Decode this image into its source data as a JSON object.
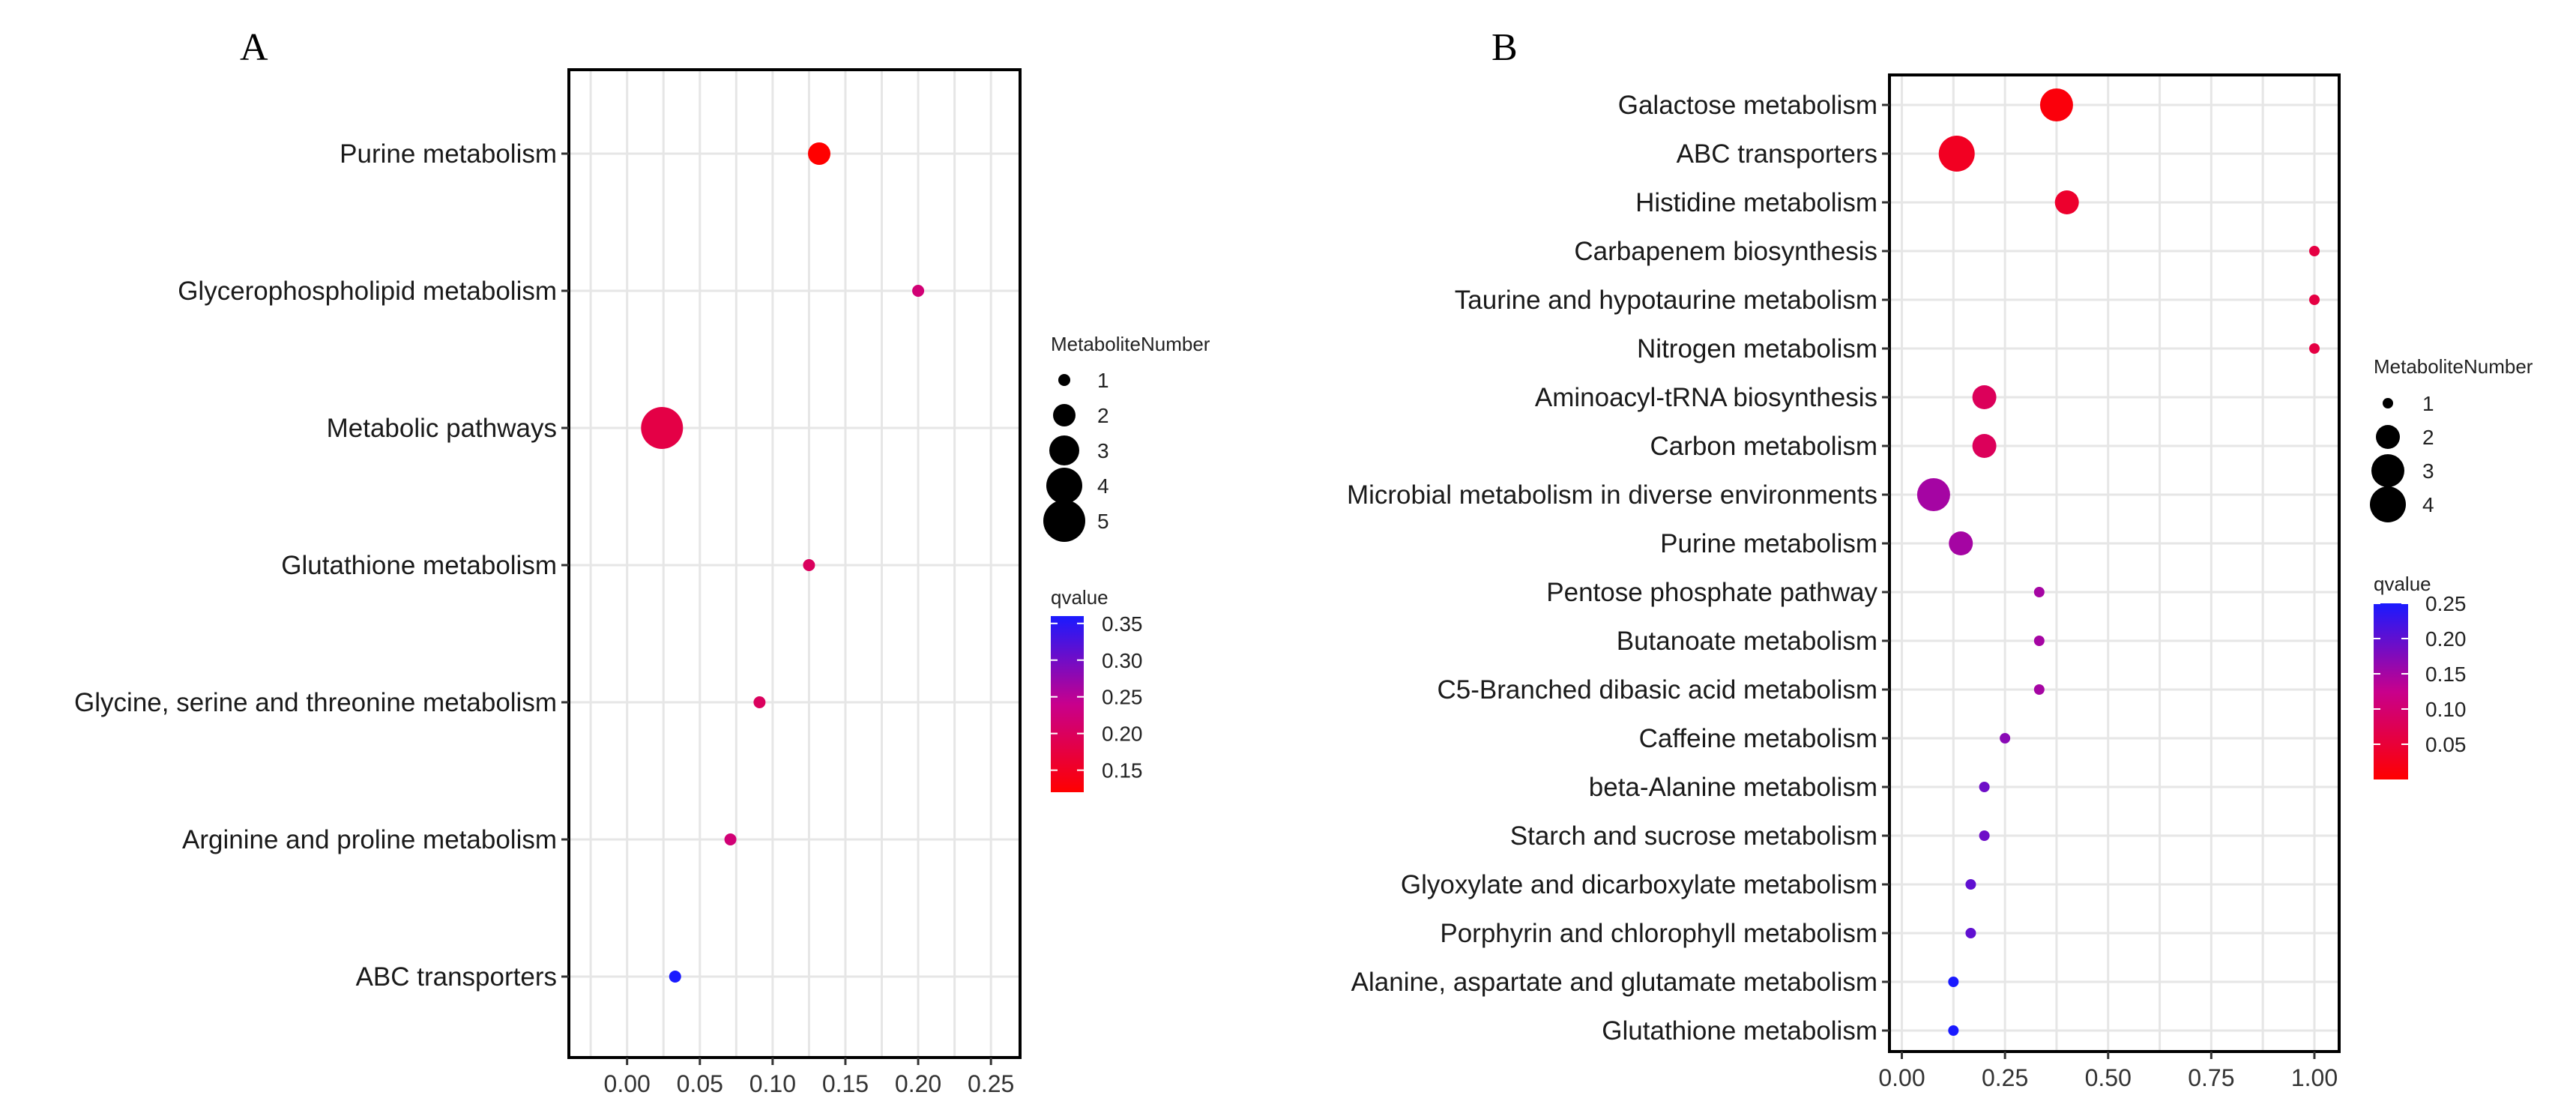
{
  "chart_data": [
    {
      "panel": "A",
      "type": "scatter",
      "xlim": [
        -0.04,
        0.27
      ],
      "x_ticks": [
        0.0,
        0.05,
        0.1,
        0.15,
        0.2,
        0.25
      ],
      "x_tick_labels": [
        "0.00",
        "0.05",
        "0.10",
        "0.15",
        "0.20",
        "0.25"
      ],
      "grid": true,
      "points": [
        {
          "pathway": "Purine metabolism",
          "x": 0.132,
          "count": 2,
          "qvalue": 0.12
        },
        {
          "pathway": "Glycerophospholipid metabolism",
          "x": 0.2,
          "count": 1,
          "qvalue": 0.22
        },
        {
          "pathway": "Metabolic pathways",
          "x": 0.024,
          "count": 5,
          "qvalue": 0.18
        },
        {
          "pathway": "Glutathione metabolism",
          "x": 0.125,
          "count": 1,
          "qvalue": 0.2
        },
        {
          "pathway": "Glycine, serine and threonine metabolism",
          "x": 0.091,
          "count": 1,
          "qvalue": 0.2
        },
        {
          "pathway": "Arginine and proline metabolism",
          "x": 0.071,
          "count": 1,
          "qvalue": 0.22
        },
        {
          "pathway": "ABC transporters",
          "x": 0.033,
          "count": 1,
          "qvalue": 0.36
        }
      ],
      "size_legend": {
        "title": "MetaboliteNumber",
        "values": [
          1,
          2,
          3,
          4,
          5
        ]
      },
      "color_legend": {
        "title": "qvalue",
        "range": [
          0.12,
          0.36
        ],
        "ticks": [
          0.15,
          0.2,
          0.25,
          0.3,
          0.35
        ],
        "tick_labels": [
          "0.15",
          "0.20",
          "0.25",
          "0.30",
          "0.35"
        ],
        "low_color": "#ff0000",
        "high_color": "#0000ff"
      }
    },
    {
      "panel": "B",
      "type": "scatter",
      "xlim": [
        -0.03,
        1.06
      ],
      "x_ticks": [
        0.0,
        0.25,
        0.5,
        0.75,
        1.0
      ],
      "x_tick_labels": [
        "0.00",
        "0.25",
        "0.50",
        "0.75",
        "1.00"
      ],
      "grid": true,
      "points": [
        {
          "pathway": "Galactose metabolism",
          "x": 0.375,
          "count": 3,
          "qvalue": 0.01
        },
        {
          "pathway": "ABC transporters",
          "x": 0.133,
          "count": 4,
          "qvalue": 0.03
        },
        {
          "pathway": "Histidine metabolism",
          "x": 0.4,
          "count": 2,
          "qvalue": 0.04
        },
        {
          "pathway": "Carbapenem biosynthesis",
          "x": 1.0,
          "count": 1,
          "qvalue": 0.06
        },
        {
          "pathway": "Taurine and hypotaurine metabolism",
          "x": 1.0,
          "count": 1,
          "qvalue": 0.06
        },
        {
          "pathway": "Nitrogen metabolism",
          "x": 1.0,
          "count": 1,
          "qvalue": 0.06
        },
        {
          "pathway": "Aminoacyl-tRNA biosynthesis",
          "x": 0.2,
          "count": 2,
          "qvalue": 0.08
        },
        {
          "pathway": "Carbon metabolism",
          "x": 0.2,
          "count": 2,
          "qvalue": 0.08
        },
        {
          "pathway": "Microbial metabolism in diverse environments",
          "x": 0.077,
          "count": 3,
          "qvalue": 0.15
        },
        {
          "pathway": "Purine metabolism",
          "x": 0.143,
          "count": 2,
          "qvalue": 0.15
        },
        {
          "pathway": "Pentose phosphate pathway",
          "x": 0.333,
          "count": 1,
          "qvalue": 0.15
        },
        {
          "pathway": "Butanoate metabolism",
          "x": 0.333,
          "count": 1,
          "qvalue": 0.15
        },
        {
          "pathway": "C5-Branched dibasic acid metabolism",
          "x": 0.333,
          "count": 1,
          "qvalue": 0.15
        },
        {
          "pathway": "Caffeine metabolism",
          "x": 0.25,
          "count": 1,
          "qvalue": 0.17
        },
        {
          "pathway": "beta-Alanine metabolism",
          "x": 0.2,
          "count": 1,
          "qvalue": 0.19
        },
        {
          "pathway": "Starch and sucrose metabolism",
          "x": 0.2,
          "count": 1,
          "qvalue": 0.19
        },
        {
          "pathway": "Glyoxylate and dicarboxylate metabolism",
          "x": 0.167,
          "count": 1,
          "qvalue": 0.2
        },
        {
          "pathway": "Porphyrin and chlorophyll metabolism",
          "x": 0.167,
          "count": 1,
          "qvalue": 0.2
        },
        {
          "pathway": "Alanine, aspartate and glutamate metabolism",
          "x": 0.125,
          "count": 1,
          "qvalue": 0.25
        },
        {
          "pathway": "Glutathione metabolism",
          "x": 0.125,
          "count": 1,
          "qvalue": 0.25
        }
      ],
      "size_legend": {
        "title": "MetaboliteNumber",
        "values": [
          1,
          2,
          3,
          4
        ]
      },
      "color_legend": {
        "title": "qvalue",
        "range": [
          0.0,
          0.25
        ],
        "ticks": [
          0.05,
          0.1,
          0.15,
          0.2,
          0.25
        ],
        "tick_labels": [
          "0.05",
          "0.10",
          "0.15",
          "0.20",
          "0.25"
        ],
        "low_color": "#ff0000",
        "high_color": "#0000ff"
      }
    }
  ]
}
